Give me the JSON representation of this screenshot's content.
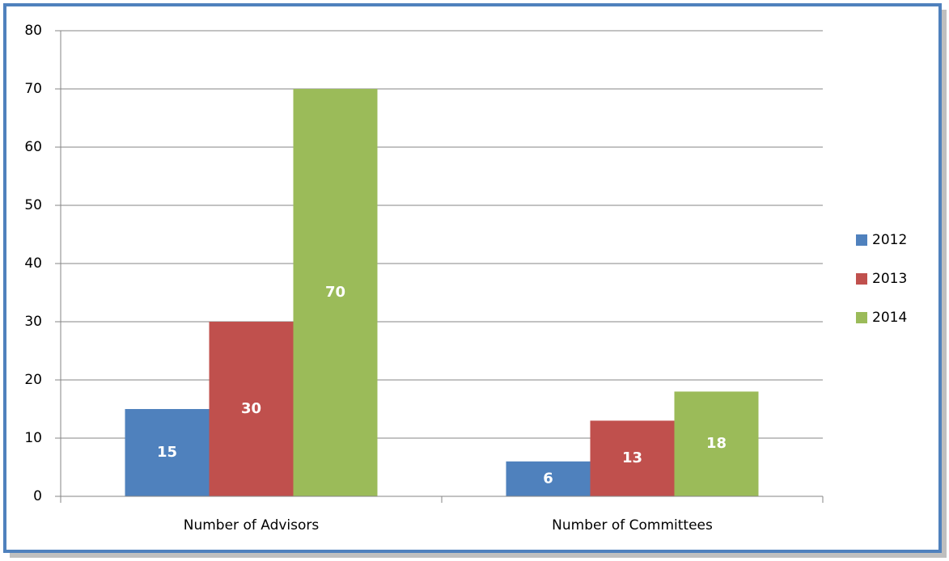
{
  "chart_data": {
    "type": "bar",
    "categories": [
      "Number of Advisors",
      "Number of Committees"
    ],
    "series": [
      {
        "name": "2012",
        "color": "#4f81bd",
        "values": [
          15,
          6
        ]
      },
      {
        "name": "2013",
        "color": "#c0504d",
        "values": [
          30,
          13
        ]
      },
      {
        "name": "2014",
        "color": "#9bbb59",
        "values": [
          70,
          18
        ]
      }
    ],
    "ylim": [
      0,
      80
    ],
    "yticks": [
      0,
      10,
      20,
      30,
      40,
      50,
      60,
      70,
      80
    ],
    "grid": true,
    "legend": "right"
  }
}
